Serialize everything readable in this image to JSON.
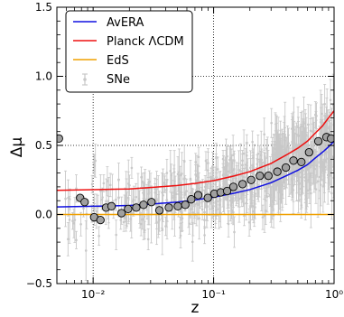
{
  "chart_data": {
    "type": "scatter",
    "xlabel": "z",
    "ylabel": "Δμ",
    "xscale": "log",
    "xlim": [
      0.005,
      1.0
    ],
    "ylim": [
      -0.5,
      1.5
    ],
    "xticks": [
      {
        "value": 0.01,
        "label": "10⁻²"
      },
      {
        "value": 0.1,
        "label": "10⁻¹"
      },
      {
        "value": 1.0,
        "label": "10⁰"
      }
    ],
    "yticks": [
      -0.5,
      0.0,
      0.5,
      1.0,
      1.5
    ],
    "ytick_labels": [
      "−0.5",
      "0.0",
      "0.5",
      "1.0",
      "1.5"
    ],
    "grid": "dotted at major ticks",
    "legend_position": "top-left",
    "colors": {
      "avera": "#1010e0",
      "planck": "#ee1111",
      "eds": "#f0a000",
      "sne": "#c8c8c8",
      "binned_fill": "#a0a0a0"
    },
    "series": [
      {
        "name": "AvERA",
        "kind": "line",
        "x": [
          0.005,
          0.01,
          0.02,
          0.03,
          0.05,
          0.07,
          0.1,
          0.15,
          0.2,
          0.3,
          0.4,
          0.5,
          0.6,
          0.7,
          0.8,
          0.9,
          1.0
        ],
        "y": [
          0.055,
          0.06,
          0.065,
          0.075,
          0.09,
          0.105,
          0.125,
          0.155,
          0.18,
          0.23,
          0.28,
          0.32,
          0.36,
          0.41,
          0.45,
          0.49,
          0.53
        ]
      },
      {
        "name": "Planck ΛCDM",
        "kind": "line",
        "x": [
          0.005,
          0.01,
          0.02,
          0.03,
          0.05,
          0.07,
          0.1,
          0.15,
          0.2,
          0.3,
          0.4,
          0.5,
          0.6,
          0.7,
          0.8,
          0.9,
          1.0
        ],
        "y": [
          0.175,
          0.18,
          0.185,
          0.195,
          0.21,
          0.225,
          0.245,
          0.28,
          0.31,
          0.37,
          0.43,
          0.48,
          0.53,
          0.59,
          0.64,
          0.7,
          0.75
        ]
      },
      {
        "name": "EdS",
        "kind": "line",
        "x": [
          0.005,
          1.0
        ],
        "y": [
          0.0,
          0.0
        ]
      },
      {
        "name": "SNe",
        "kind": "errorbar-scatter"
      },
      {
        "name": "binned",
        "kind": "markers",
        "x": [
          0.0052,
          0.0078,
          0.0085,
          0.0102,
          0.0115,
          0.0128,
          0.0142,
          0.0172,
          0.0195,
          0.0228,
          0.0262,
          0.0305,
          0.0355,
          0.0425,
          0.0505,
          0.0582,
          0.0652,
          0.0745,
          0.0895,
          0.1015,
          0.1145,
          0.1295,
          0.146,
          0.174,
          0.205,
          0.242,
          0.285,
          0.338,
          0.398,
          0.46,
          0.535,
          0.62,
          0.74,
          0.865,
          0.945
        ],
        "y": [
          0.55,
          0.12,
          0.09,
          -0.02,
          -0.04,
          0.05,
          0.06,
          0.01,
          0.04,
          0.05,
          0.07,
          0.09,
          0.03,
          0.05,
          0.06,
          0.07,
          0.11,
          0.14,
          0.12,
          0.15,
          0.16,
          0.17,
          0.2,
          0.22,
          0.25,
          0.28,
          0.28,
          0.31,
          0.34,
          0.39,
          0.38,
          0.45,
          0.53,
          0.56,
          0.55
        ]
      }
    ]
  }
}
